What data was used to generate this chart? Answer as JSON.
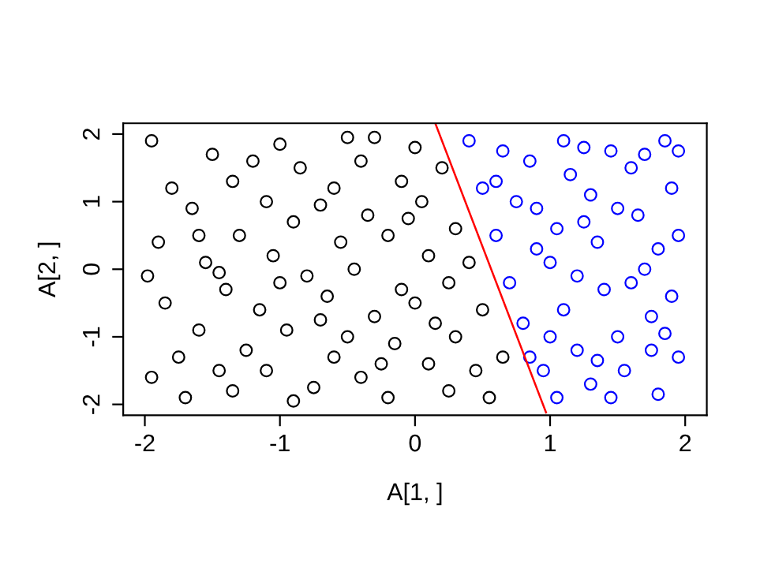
{
  "chart_data": {
    "type": "scatter",
    "xlabel": "A[1, ]",
    "ylabel": "A[2, ]",
    "marker": "circle",
    "grid": false,
    "legend": false,
    "xlim": [
      -2.16,
      2.16
    ],
    "ylim": [
      -2.16,
      2.16
    ],
    "xticks": [
      -2,
      -1,
      0,
      1,
      2
    ],
    "yticks": [
      -2,
      -1,
      0,
      1,
      2
    ],
    "series": [
      {
        "color": "#000000",
        "x": [
          -1.95,
          -1.8,
          -1.9,
          -1.85,
          -1.95,
          -1.7,
          -1.6,
          -1.55,
          -1.65,
          -1.5,
          -1.35,
          -1.3,
          -1.4,
          -1.25,
          -1.35,
          -1.1,
          -1.15,
          -1.05,
          -1.1,
          -1.0,
          -0.85,
          -0.9,
          -0.8,
          -0.95,
          -0.75,
          -0.6,
          -0.65,
          -0.55,
          -0.6,
          -0.5,
          -0.4,
          -0.35,
          -0.45,
          -0.3,
          -0.4,
          -0.2,
          -0.15,
          -0.1,
          -0.2,
          -0.1,
          0.0,
          0.05,
          0.1,
          0.0,
          0.1,
          0.25,
          0.3,
          0.25,
          0.3,
          0.2,
          0.45,
          0.5,
          0.55,
          0.4,
          0.65,
          -1.75,
          -1.45,
          -1.2,
          -0.7,
          -0.25,
          -1.6,
          -0.9,
          -0.05,
          -1.98,
          -1.0,
          -0.5,
          0.15,
          -0.3,
          -1.45,
          -0.7
        ],
        "values": [
          1.9,
          1.2,
          0.4,
          -0.5,
          -1.6,
          -1.9,
          -0.9,
          0.1,
          0.9,
          1.7,
          1.3,
          0.5,
          -0.3,
          -1.2,
          -1.8,
          -1.5,
          -0.6,
          0.2,
          1.0,
          1.85,
          1.5,
          0.7,
          -0.1,
          -0.9,
          -1.75,
          -1.3,
          -0.4,
          0.4,
          1.2,
          1.95,
          1.6,
          0.8,
          0.0,
          -0.7,
          -1.6,
          -1.9,
          -1.1,
          -0.3,
          0.5,
          1.3,
          1.8,
          1.0,
          0.2,
          -0.5,
          -1.4,
          -1.8,
          -1.0,
          -0.2,
          0.6,
          1.5,
          -1.5,
          -0.6,
          -1.9,
          0.1,
          -1.3,
          -1.3,
          -1.5,
          1.6,
          0.95,
          -1.4,
          0.5,
          -1.95,
          0.75,
          -0.1,
          -0.2,
          -1.0,
          -0.8,
          1.95,
          -0.05,
          -0.75
        ]
      },
      {
        "color": "#0000ff",
        "x": [
          0.4,
          0.5,
          0.6,
          0.7,
          0.8,
          0.95,
          1.05,
          0.85,
          0.9,
          1.0,
          1.1,
          1.2,
          1.3,
          1.25,
          1.3,
          1.35,
          1.4,
          1.5,
          1.55,
          1.6,
          1.65,
          1.7,
          1.75,
          1.8,
          1.85,
          1.9,
          1.95,
          1.9,
          1.95,
          1.15,
          1.45,
          1.05,
          0.75,
          0.65,
          1.0,
          1.6,
          1.8,
          1.7,
          1.35,
          0.85,
          1.2,
          1.5,
          1.95,
          1.75,
          0.9,
          1.45,
          1.1,
          0.6,
          1.25,
          1.85
        ],
        "values": [
          1.9,
          1.2,
          0.5,
          -0.2,
          -0.8,
          -1.5,
          -1.9,
          1.6,
          0.9,
          0.1,
          -0.6,
          -1.2,
          -1.7,
          1.8,
          1.1,
          0.4,
          -0.3,
          -1.0,
          -1.5,
          1.5,
          0.8,
          0.0,
          -0.7,
          -1.85,
          1.9,
          1.2,
          0.5,
          -0.4,
          -1.3,
          1.4,
          1.75,
          0.6,
          1.0,
          1.75,
          -1.0,
          -0.2,
          0.3,
          1.7,
          -1.35,
          -1.3,
          -0.1,
          0.9,
          1.75,
          -1.2,
          0.3,
          -1.9,
          1.9,
          1.3,
          0.7,
          -0.95
        ]
      },
      {
        "type": "line",
        "color": "#ff0000",
        "marker": "none",
        "x": [
          0.15,
          0.97
        ],
        "values": [
          2.16,
          -2.12
        ]
      }
    ]
  }
}
